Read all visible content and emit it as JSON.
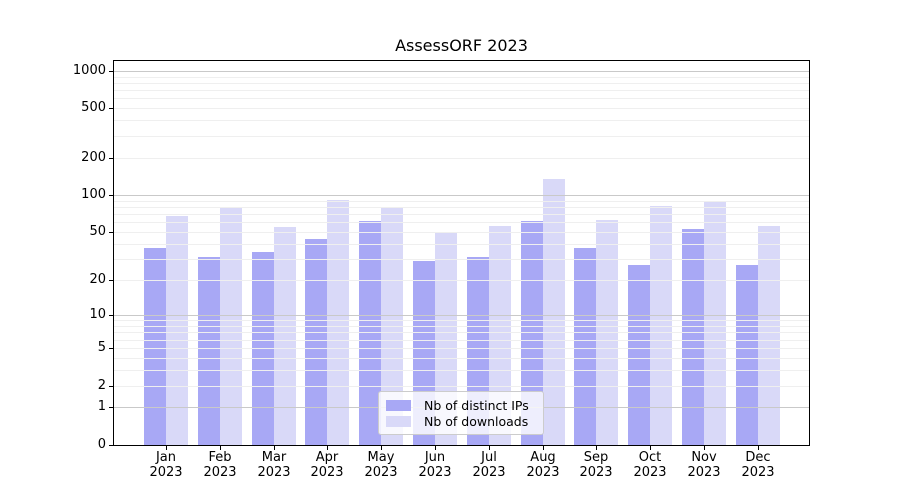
{
  "chart_data": {
    "type": "bar",
    "title": "AssessORF 2023",
    "year": "2023",
    "months": [
      "Jan",
      "Feb",
      "Mar",
      "Apr",
      "May",
      "Jun",
      "Jul",
      "Aug",
      "Sep",
      "Oct",
      "Nov",
      "Dec"
    ],
    "categories": [
      "Jan 2023",
      "Feb 2023",
      "Mar 2023",
      "Apr 2023",
      "May 2023",
      "Jun 2023",
      "Jul 2023",
      "Aug 2023",
      "Sep 2023",
      "Oct 2023",
      "Nov 2023",
      "Dec 2023"
    ],
    "series": [
      {
        "name": "Nb of distinct IPs",
        "color": "#a8a8f5",
        "values": [
          37,
          31,
          34,
          44,
          62,
          29,
          31,
          62,
          37,
          27,
          53,
          27
        ]
      },
      {
        "name": "Nb of downloads",
        "color": "#d9d9f8",
        "values": [
          68,
          78,
          55,
          91,
          78,
          49,
          56,
          134,
          63,
          82,
          88,
          56
        ]
      }
    ],
    "yscale": "log1p",
    "ylim": [
      0,
      1200
    ],
    "y_ticks": [
      0,
      1,
      2,
      5,
      10,
      20,
      50,
      100,
      200,
      500,
      1000
    ],
    "y_major_gridlines": [
      1,
      10,
      100,
      1000
    ],
    "grid": "both",
    "legend_position": "lower center",
    "xlabel": "",
    "ylabel": ""
  },
  "colors": {
    "bar_distinct_ips": "#a8a8f5",
    "bar_downloads": "#d9d9f8",
    "major_grid": "#c9c9c9",
    "minor_grid": "#efefef",
    "axis": "#000000",
    "background": "#ffffff",
    "legend_border": "#cccccc",
    "legend_background": "rgba(255,255,255,0.8)"
  }
}
